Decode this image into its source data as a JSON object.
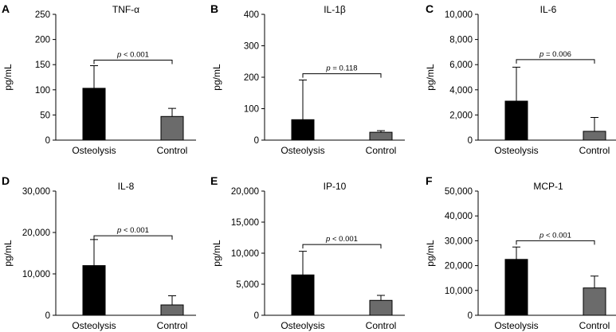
{
  "figure": {
    "background": "#ffffff",
    "bar_colors": [
      "#000000",
      "#6b6b6b"
    ]
  },
  "chart_data": [
    {
      "letter": "A",
      "type": "bar",
      "title": "TNF-α",
      "ylabel": "pg/mL",
      "categories": [
        "Osteolysis",
        "Control"
      ],
      "values": [
        103,
        47
      ],
      "errors": [
        45,
        16
      ],
      "ylim": [
        0,
        250
      ],
      "yticks": [
        0,
        50,
        100,
        150,
        200,
        250
      ],
      "ytick_labels": [
        "0",
        "50",
        "100",
        "150",
        "200",
        "250"
      ],
      "bracket_y": 159,
      "p_label": "p",
      "p_value": "< 0.001"
    },
    {
      "letter": "B",
      "type": "bar",
      "title": "IL-1β",
      "ylabel": "pg/mL",
      "categories": [
        "Osteolysis",
        "Control"
      ],
      "values": [
        65,
        25
      ],
      "errors": [
        126,
        5
      ],
      "ylim": [
        0,
        400
      ],
      "yticks": [
        0,
        100,
        200,
        300,
        400
      ],
      "ytick_labels": [
        "0",
        "100",
        "200",
        "300",
        "400"
      ],
      "bracket_y": 211,
      "p_label": "p",
      "p_value": "= 0.118"
    },
    {
      "letter": "C",
      "type": "bar",
      "title": "IL-6",
      "ylabel": "pg/mL",
      "categories": [
        "Osteolysis",
        "Control"
      ],
      "values": [
        3100,
        700
      ],
      "errors": [
        2700,
        1100
      ],
      "ylim": [
        0,
        10000
      ],
      "yticks": [
        0,
        2000,
        4000,
        6000,
        8000,
        10000
      ],
      "ytick_labels": [
        "0",
        "2,000",
        "4,000",
        "6,000",
        "8,000",
        "10,000"
      ],
      "bracket_y": 6400,
      "p_label": "p",
      "p_value": "= 0.006"
    },
    {
      "letter": "D",
      "type": "bar",
      "title": "IL-8",
      "ylabel": "pg/mL",
      "categories": [
        "Osteolysis",
        "Control"
      ],
      "values": [
        12000,
        2500
      ],
      "errors": [
        6300,
        2200
      ],
      "ylim": [
        0,
        30000
      ],
      "yticks": [
        0,
        10000,
        20000,
        30000
      ],
      "ytick_labels": [
        "0",
        "10,000",
        "20,000",
        "30,000"
      ],
      "bracket_y": 19200,
      "p_label": "p",
      "p_value": "< 0.001"
    },
    {
      "letter": "E",
      "type": "bar",
      "title": "IP-10",
      "ylabel": "pg/mL",
      "categories": [
        "Osteolysis",
        "Control"
      ],
      "values": [
        6500,
        2400
      ],
      "errors": [
        3800,
        800
      ],
      "ylim": [
        0,
        20000
      ],
      "yticks": [
        0,
        5000,
        10000,
        15000,
        20000
      ],
      "ytick_labels": [
        "0",
        "5,000",
        "10,000",
        "15,000",
        "20,000"
      ],
      "bracket_y": 11400,
      "p_label": "p",
      "p_value": "< 0.001"
    },
    {
      "letter": "F",
      "type": "bar",
      "title": "MCP-1",
      "ylabel": "pg/mL",
      "categories": [
        "Osteolysis",
        "Control"
      ],
      "values": [
        22500,
        11000
      ],
      "errors": [
        5000,
        4800
      ],
      "ylim": [
        0,
        50000
      ],
      "yticks": [
        0,
        10000,
        20000,
        30000,
        40000,
        50000
      ],
      "ytick_labels": [
        "0",
        "10,000",
        "20,000",
        "30,000",
        "40,000",
        "50,000"
      ],
      "bracket_y": 30000,
      "p_label": "p",
      "p_value": "< 0.001"
    }
  ]
}
